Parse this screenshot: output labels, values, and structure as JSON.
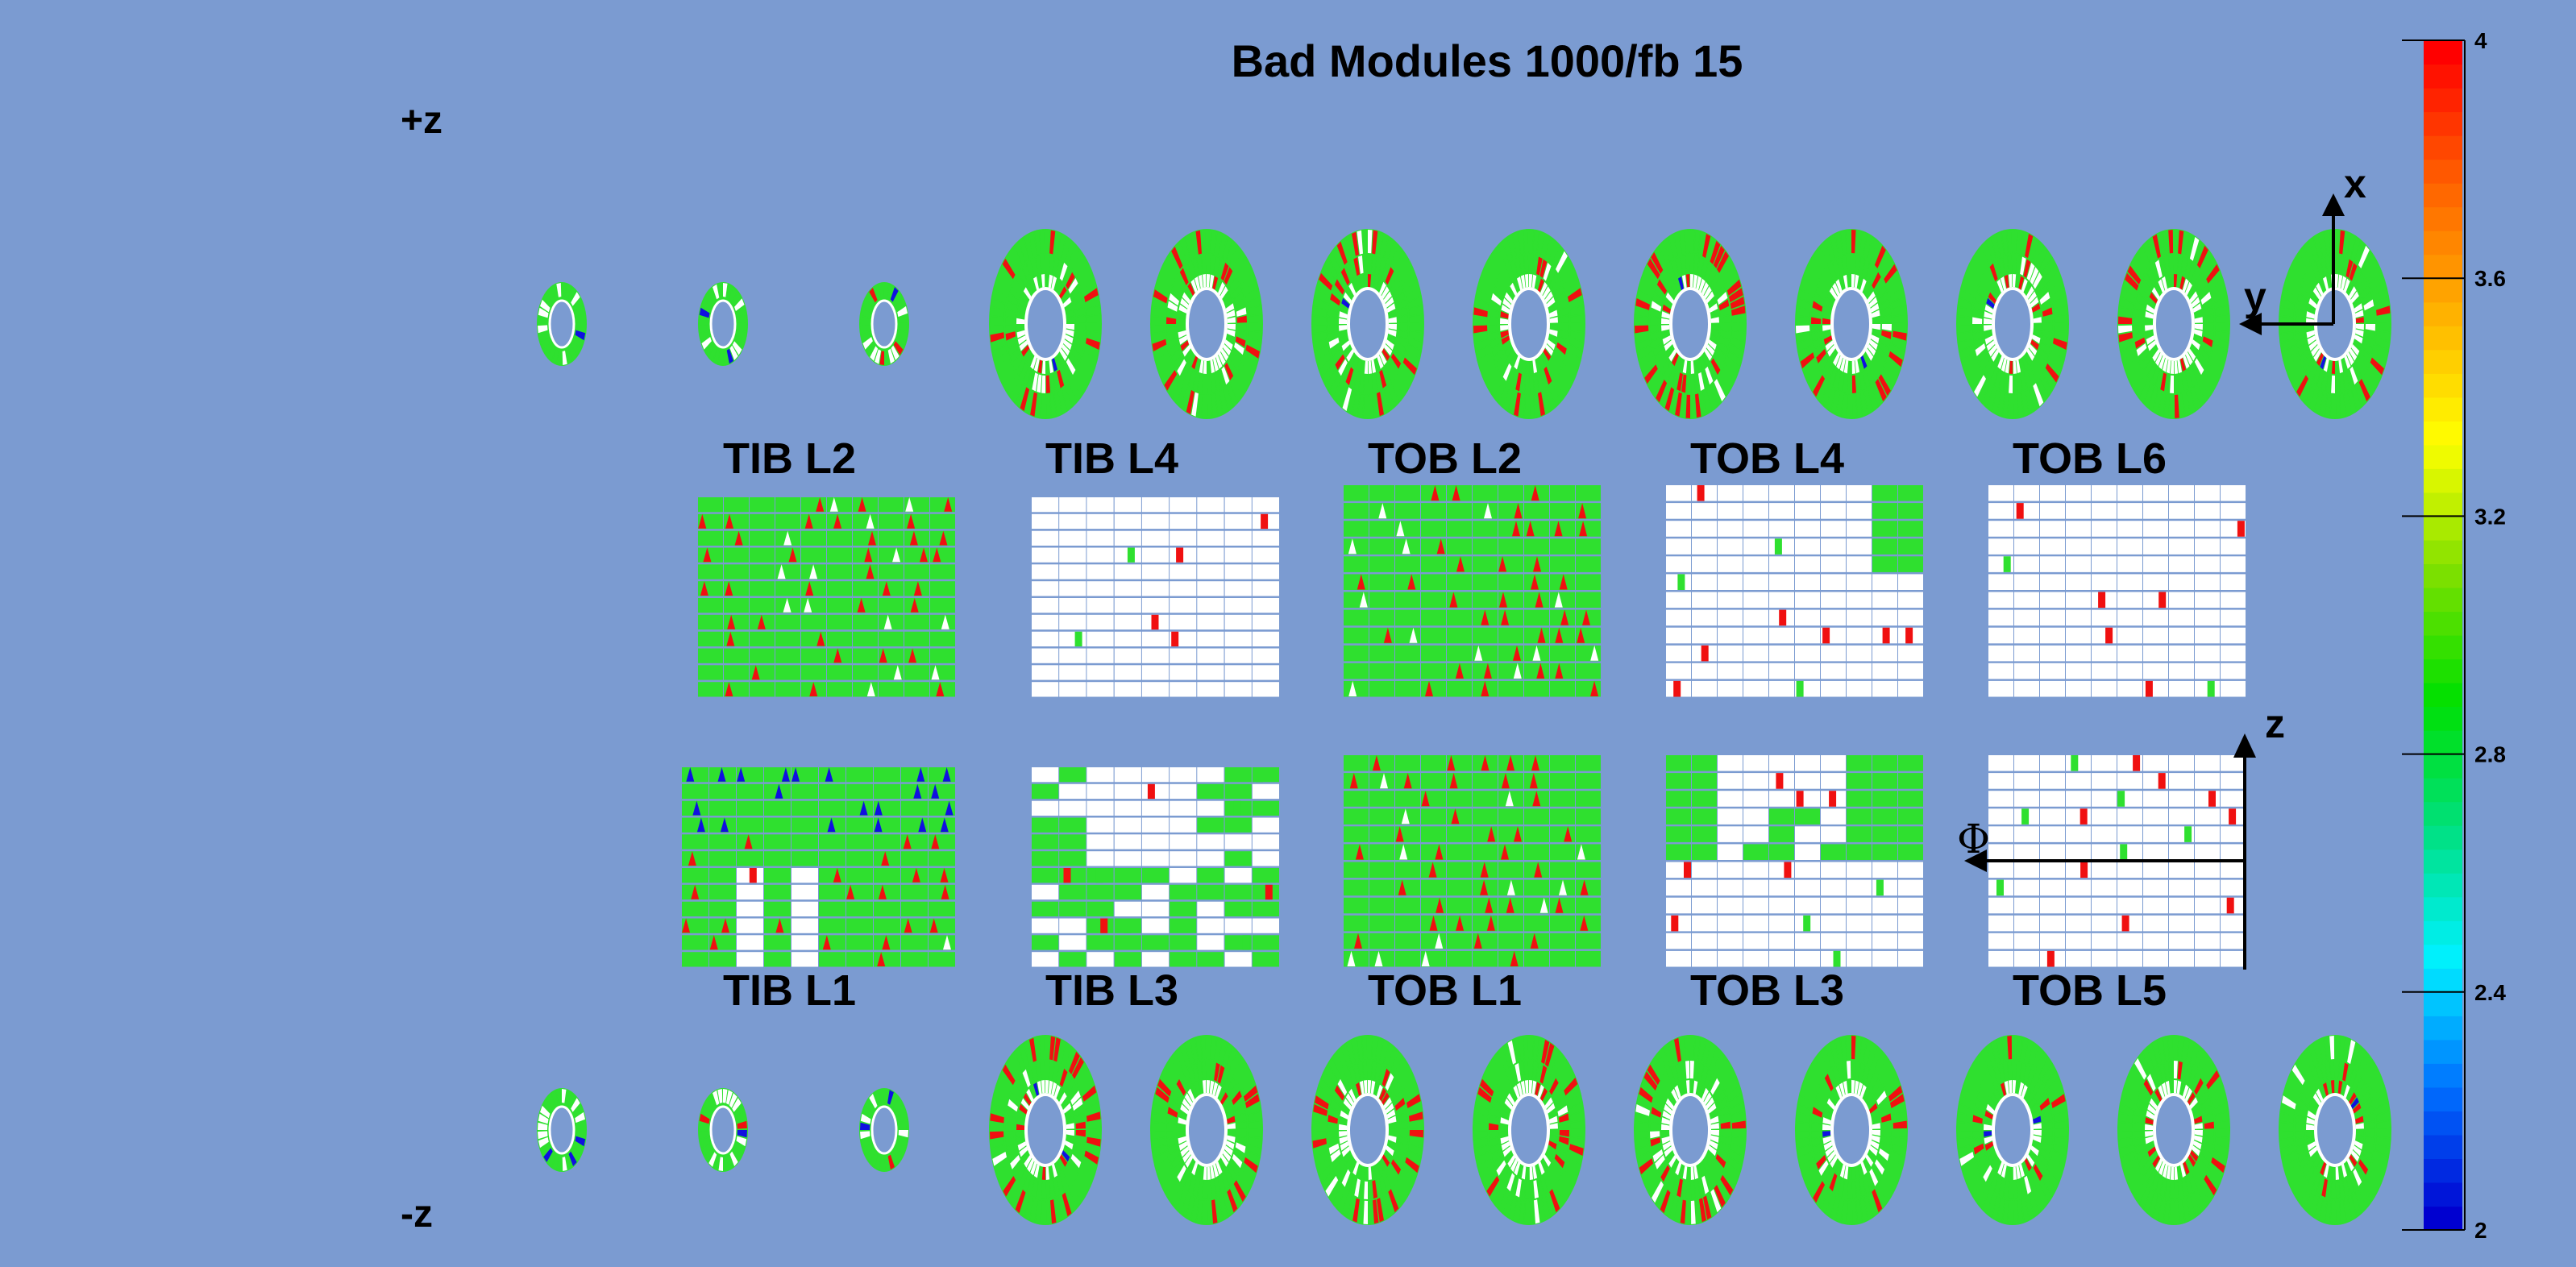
{
  "title": "Bad Modules 1000/fb 15",
  "side_labels": {
    "plus_z": "+z",
    "minus_z": "-z"
  },
  "barrel_layers_top": [
    "TIB L2",
    "TIB L4",
    "TOB L2",
    "TOB L4",
    "TOB L6"
  ],
  "barrel_layers_bottom": [
    "TIB L1",
    "TIB L3",
    "TOB L1",
    "TOB L3",
    "TOB L5"
  ],
  "axes": {
    "x": "x",
    "y": "y",
    "z": "z",
    "phi": "Φ"
  },
  "color_scale": {
    "min": 2,
    "max": 4,
    "ticks": [
      "2",
      "2.4",
      "2.8",
      "3.2",
      "3.6",
      "4"
    ],
    "tick_values": [
      2,
      2.4,
      2.8,
      3.2,
      3.6,
      4
    ],
    "colors": [
      "#0000d0",
      "#0070ff",
      "#00f0ff",
      "#00e080",
      "#00e000",
      "#80e000",
      "#ffff00",
      "#ffb000",
      "#ff6000",
      "#ff0000"
    ]
  },
  "module_colors": {
    "good": "#2fe02f",
    "bad": "#f01010",
    "low": "#1010e0",
    "empty": "#ffffff"
  },
  "disks_per_side": 12
}
